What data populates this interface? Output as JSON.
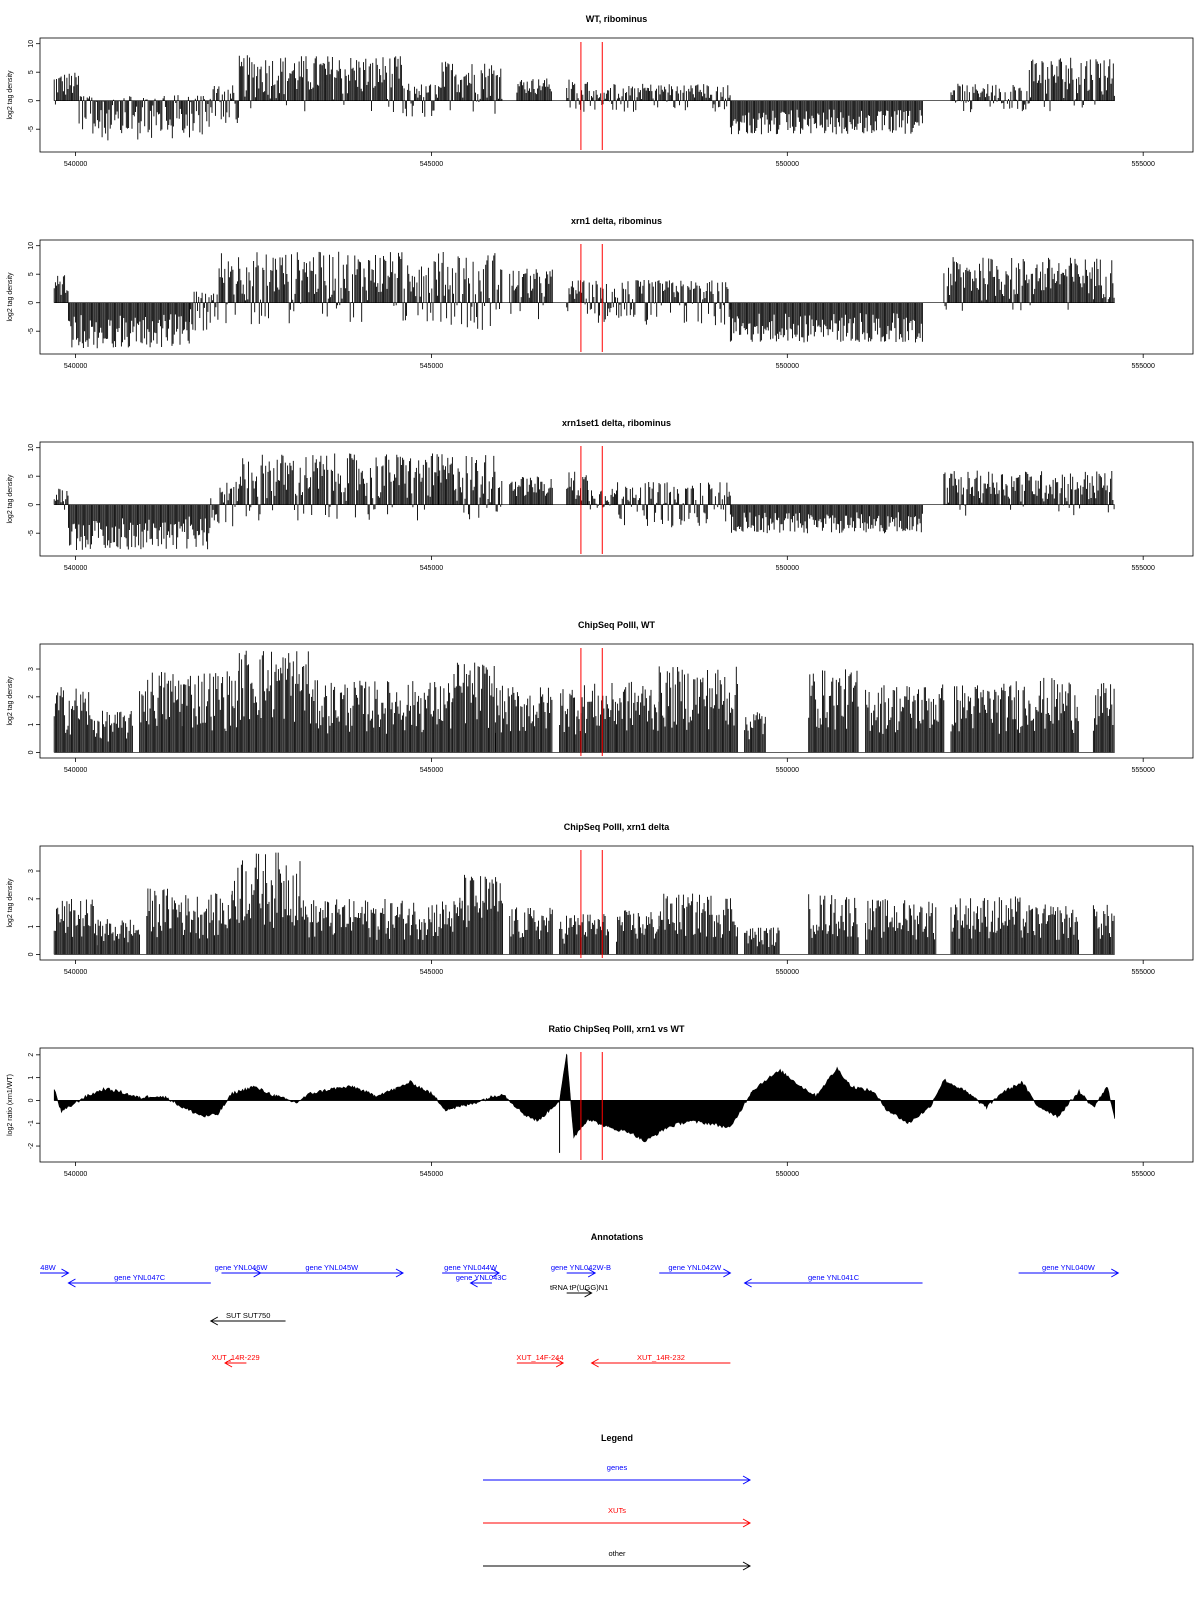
{
  "chart_data": [
    {
      "type": "bar",
      "title": "WT, ribominus",
      "ylabel": "log2 tag density",
      "xlim": [
        539500,
        555700
      ],
      "ylim": [
        -9,
        11
      ],
      "yticks": [
        -5,
        0,
        5,
        10
      ],
      "xticks": [
        540000,
        545000,
        550000,
        555000
      ],
      "markers": [
        547100,
        547400
      ],
      "marker_color": "#ff0000",
      "bar_color": "#000000",
      "segments": [
        {
          "x": [
            539700,
            540050
          ],
          "min": -1,
          "max": 5
        },
        {
          "x": [
            540050,
            541900
          ],
          "min": -7,
          "max": 1
        },
        {
          "x": [
            541900,
            542300
          ],
          "min": -4,
          "max": 3
        },
        {
          "x": [
            542300,
            544600
          ],
          "min": -2,
          "max": 8
        },
        {
          "x": [
            544600,
            545150
          ],
          "min": -3,
          "max": 3
        },
        {
          "x": [
            545150,
            546000
          ],
          "min": -3,
          "max": 7
        },
        {
          "x": [
            546200,
            546700
          ],
          "min": 0,
          "max": 4
        },
        {
          "x": [
            546900,
            547200
          ],
          "min": -2,
          "max": 4
        },
        {
          "x": [
            547200,
            547500
          ],
          "min": -2,
          "max": 2
        },
        {
          "x": [
            547500,
            549200
          ],
          "min": -2,
          "max": 3
        },
        {
          "x": [
            549200,
            551900
          ],
          "min": -6,
          "max": 0
        },
        {
          "x": [
            552300,
            553400
          ],
          "min": -2,
          "max": 3
        },
        {
          "x": [
            553400,
            554600
          ],
          "min": -2,
          "max": 8
        }
      ]
    },
    {
      "type": "bar",
      "title": "xrn1 delta, ribominus",
      "ylabel": "log2 tag density",
      "xlim": [
        539500,
        555700
      ],
      "ylim": [
        -9,
        11
      ],
      "yticks": [
        -5,
        0,
        5,
        10
      ],
      "xticks": [
        540000,
        545000,
        550000,
        555000
      ],
      "markers": [
        547100,
        547400
      ],
      "marker_color": "#ff0000",
      "bar_color": "#000000",
      "segments": [
        {
          "x": [
            539700,
            539900
          ],
          "min": 0,
          "max": 5
        },
        {
          "x": [
            539900,
            541600
          ],
          "min": -8,
          "max": 0
        },
        {
          "x": [
            541600,
            542000
          ],
          "min": -5,
          "max": 2
        },
        {
          "x": [
            542000,
            545100
          ],
          "min": -4,
          "max": 9
        },
        {
          "x": [
            545100,
            546000
          ],
          "min": -5,
          "max": 9
        },
        {
          "x": [
            546100,
            546700
          ],
          "min": -3,
          "max": 6
        },
        {
          "x": [
            546900,
            547200
          ],
          "min": -2,
          "max": 4
        },
        {
          "x": [
            547200,
            547600
          ],
          "min": -4,
          "max": 4
        },
        {
          "x": [
            547600,
            549200
          ],
          "min": -4,
          "max": 4
        },
        {
          "x": [
            549200,
            551900
          ],
          "min": -7,
          "max": 0
        },
        {
          "x": [
            552200,
            554600
          ],
          "min": -2,
          "max": 8
        }
      ]
    },
    {
      "type": "bar",
      "title": "xrn1set1 delta, ribominus",
      "ylabel": "log2 tag density",
      "xlim": [
        539500,
        555700
      ],
      "ylim": [
        -9,
        11
      ],
      "yticks": [
        -5,
        0,
        5,
        10
      ],
      "xticks": [
        540000,
        545000,
        550000,
        555000
      ],
      "markers": [
        547100,
        547400
      ],
      "marker_color": "#ff0000",
      "bar_color": "#000000",
      "segments": [
        {
          "x": [
            539700,
            539900
          ],
          "min": -1,
          "max": 3
        },
        {
          "x": [
            539900,
            541900
          ],
          "min": -8,
          "max": 0
        },
        {
          "x": [
            541900,
            542300
          ],
          "min": -4,
          "max": 4
        },
        {
          "x": [
            542300,
            545100
          ],
          "min": -3,
          "max": 9
        },
        {
          "x": [
            545100,
            546000
          ],
          "min": -3,
          "max": 9
        },
        {
          "x": [
            546100,
            546700
          ],
          "min": 0,
          "max": 5
        },
        {
          "x": [
            546900,
            547200
          ],
          "min": -2,
          "max": 6
        },
        {
          "x": [
            547200,
            547600
          ],
          "min": -2,
          "max": 3
        },
        {
          "x": [
            547600,
            549200
          ],
          "min": -4,
          "max": 4
        },
        {
          "x": [
            549200,
            551900
          ],
          "min": -5,
          "max": 0
        },
        {
          "x": [
            552200,
            554600
          ],
          "min": -2,
          "max": 6
        }
      ]
    },
    {
      "type": "bar",
      "title": "ChipSeq PolII, WT",
      "ylabel": "log2 tag density",
      "xlim": [
        539500,
        555700
      ],
      "ylim": [
        -0.2,
        3.9
      ],
      "yticks": [
        0,
        1,
        2,
        3
      ],
      "xticks": [
        540000,
        545000,
        550000,
        555000
      ],
      "markers": [
        547100,
        547400
      ],
      "marker_color": "#ff0000",
      "bar_color": "#000000",
      "segments": [
        {
          "x": [
            539700,
            540200
          ],
          "min": 0,
          "max": 2.4
        },
        {
          "x": [
            540200,
            540800
          ],
          "min": 0,
          "max": 1.5
        },
        {
          "x": [
            540900,
            541500
          ],
          "min": 0,
          "max": 3
        },
        {
          "x": [
            541500,
            542300
          ],
          "min": 0,
          "max": 3
        },
        {
          "x": [
            542300,
            543300
          ],
          "min": 0,
          "max": 3.8
        },
        {
          "x": [
            543300,
            545300
          ],
          "min": 0,
          "max": 2.6
        },
        {
          "x": [
            545300,
            545900
          ],
          "min": 0,
          "max": 3.3
        },
        {
          "x": [
            545900,
            546700
          ],
          "min": 0,
          "max": 2.4
        },
        {
          "x": [
            546800,
            547100
          ],
          "min": 0,
          "max": 2.5
        },
        {
          "x": [
            547100,
            547600
          ],
          "min": 0,
          "max": 2.5
        },
        {
          "x": [
            547600,
            548200
          ],
          "min": 0,
          "max": 2.6
        },
        {
          "x": [
            548200,
            549300
          ],
          "min": 0,
          "max": 3.1
        },
        {
          "x": [
            549400,
            549700
          ],
          "min": 0,
          "max": 1.6
        },
        {
          "x": [
            550300,
            551000
          ],
          "min": 0,
          "max": 3
        },
        {
          "x": [
            551100,
            552200
          ],
          "min": 0,
          "max": 2.5
        },
        {
          "x": [
            552300,
            553200
          ],
          "min": 0,
          "max": 2.5
        },
        {
          "x": [
            553200,
            554100
          ],
          "min": 0,
          "max": 2.7
        },
        {
          "x": [
            554300,
            554600
          ],
          "min": 0,
          "max": 2.5
        }
      ]
    },
    {
      "type": "bar",
      "title": "ChipSeq PolII, xrn1 delta",
      "ylabel": "log2 tag density",
      "xlim": [
        539500,
        555700
      ],
      "ylim": [
        -0.2,
        3.9
      ],
      "yticks": [
        0,
        1,
        2,
        3
      ],
      "xticks": [
        540000,
        545000,
        550000,
        555000
      ],
      "markers": [
        547100,
        547400
      ],
      "marker_color": "#ff0000",
      "bar_color": "#000000",
      "segments": [
        {
          "x": [
            539700,
            540300
          ],
          "min": 0,
          "max": 2
        },
        {
          "x": [
            540300,
            540900
          ],
          "min": 0,
          "max": 1.3
        },
        {
          "x": [
            541000,
            541500
          ],
          "min": 0,
          "max": 2.4
        },
        {
          "x": [
            541500,
            542200
          ],
          "min": 0,
          "max": 2.2
        },
        {
          "x": [
            542200,
            543200
          ],
          "min": 0,
          "max": 3.7
        },
        {
          "x": [
            543200,
            545400
          ],
          "min": 0,
          "max": 2
        },
        {
          "x": [
            545400,
            546000
          ],
          "min": 0,
          "max": 2.9
        },
        {
          "x": [
            546100,
            546700
          ],
          "min": 0,
          "max": 1.7
        },
        {
          "x": [
            546800,
            547100
          ],
          "min": 0,
          "max": 1.5
        },
        {
          "x": [
            547100,
            547500
          ],
          "min": 0,
          "max": 1.5
        },
        {
          "x": [
            547600,
            548200
          ],
          "min": 0,
          "max": 1.6
        },
        {
          "x": [
            548200,
            549300
          ],
          "min": 0,
          "max": 2.2
        },
        {
          "x": [
            549400,
            549900
          ],
          "min": 0,
          "max": 1
        },
        {
          "x": [
            550300,
            551000
          ],
          "min": 0,
          "max": 2.2
        },
        {
          "x": [
            551100,
            552100
          ],
          "min": 0,
          "max": 2
        },
        {
          "x": [
            552300,
            553300
          ],
          "min": 0,
          "max": 2.1
        },
        {
          "x": [
            553300,
            554100
          ],
          "min": 0,
          "max": 1.8
        },
        {
          "x": [
            554300,
            554600
          ],
          "min": 0,
          "max": 1.8
        }
      ]
    },
    {
      "type": "area",
      "title": "Ratio ChipSeq PolII, xrn1 vs WT",
      "ylabel": "log2 ratio (xrn1/WT)",
      "xlim": [
        539500,
        555700
      ],
      "ylim": [
        -2.7,
        2.3
      ],
      "yticks": [
        -2,
        -1,
        0,
        1,
        2
      ],
      "xticks": [
        540000,
        545000,
        550000,
        555000
      ],
      "markers": [
        547100,
        547400
      ],
      "marker_color": "#ff0000",
      "x": [
        539700,
        539800,
        539900,
        540100,
        540400,
        540600,
        540900,
        541100,
        541300,
        541500,
        541800,
        542000,
        542200,
        542500,
        542800,
        543100,
        543300,
        543600,
        543900,
        544200,
        544500,
        544700,
        545000,
        545200,
        545500,
        545800,
        546000,
        546300,
        546500,
        546700,
        546800,
        546900,
        547000,
        547200,
        547500,
        547800,
        548000,
        548300,
        548600,
        548900,
        549200,
        549500,
        549700,
        549900,
        550200,
        550400,
        550700,
        550900,
        551200,
        551400,
        551700,
        552000,
        552200,
        552500,
        552800,
        553000,
        553300,
        553500,
        553800,
        554100,
        554300,
        554500,
        554600
      ],
      "values": [
        0.5,
        -0.5,
        -0.3,
        0.1,
        0.5,
        0.4,
        0.1,
        0.2,
        0.1,
        -0.3,
        -0.7,
        -0.6,
        0.3,
        0.6,
        0.2,
        -0.1,
        0.3,
        0.5,
        0.6,
        0.2,
        0.5,
        0.8,
        0.3,
        -0.4,
        -0.2,
        0.1,
        0.3,
        -0.6,
        -0.9,
        -0.3,
        0.0,
        2.0,
        -1.6,
        -0.8,
        -1.2,
        -1.4,
        -1.8,
        -1.2,
        -0.9,
        -1.0,
        -1.2,
        0.4,
        0.9,
        1.3,
        0.6,
        0.2,
        1.4,
        0.6,
        0.4,
        -0.4,
        -1.0,
        -0.3,
        0.9,
        0.4,
        -0.3,
        0.3,
        0.8,
        -0.2,
        -0.7,
        0.4,
        -0.3,
        0.6,
        -0.8
      ]
    }
  ],
  "annotations": {
    "title": "Annotations",
    "xlim": [
      539500,
      555700
    ],
    "items": [
      {
        "label": "48W",
        "x1": 539500,
        "x2": 539900,
        "strand": "+",
        "row": 0,
        "color": "#0000ff"
      },
      {
        "label": "gene YNL047C",
        "x1": 539900,
        "x2": 541900,
        "strand": "-",
        "row": 1,
        "color": "#0000ff"
      },
      {
        "label": "gene YNL046W",
        "x1": 542050,
        "x2": 542600,
        "strand": "+",
        "row": 0,
        "color": "#0000ff"
      },
      {
        "label": "gene YNL045W",
        "x1": 542600,
        "x2": 544600,
        "strand": "+",
        "row": 0,
        "color": "#0000ff"
      },
      {
        "label": "gene YNL044W",
        "x1": 545150,
        "x2": 545950,
        "strand": "+",
        "row": 0,
        "color": "#0000ff"
      },
      {
        "label": "gene YNL043C",
        "x1": 545550,
        "x2": 545850,
        "strand": "-",
        "row": 1,
        "color": "#0000ff"
      },
      {
        "label": "gene YNL042W-B",
        "x1": 546900,
        "x2": 547300,
        "strand": "+",
        "row": 0,
        "color": "#0000ff"
      },
      {
        "label": "gene YNL042W",
        "x1": 548200,
        "x2": 549200,
        "strand": "+",
        "row": 0,
        "color": "#0000ff"
      },
      {
        "label": "gene YNL041C",
        "x1": 549400,
        "x2": 551900,
        "strand": "-",
        "row": 1,
        "color": "#0000ff"
      },
      {
        "label": "gene YNL040W",
        "x1": 553250,
        "x2": 554650,
        "strand": "+",
        "row": 0,
        "color": "#0000ff"
      },
      {
        "label": "tRNA tP(UGG)N1",
        "x1": 546900,
        "x2": 547250,
        "strand": "+",
        "row": 2,
        "color": "#000000"
      },
      {
        "label": "SUT SUT750",
        "x1": 541900,
        "x2": 542950,
        "strand": "-",
        "row": 3,
        "color": "#000000"
      },
      {
        "label": "XUT_14R-229",
        "x1": 542100,
        "x2": 542400,
        "strand": "-",
        "row": 4,
        "color": "#ff0000"
      },
      {
        "label": "XUT_14F-244",
        "x1": 546200,
        "x2": 546850,
        "strand": "+",
        "row": 4,
        "color": "#ff0000"
      },
      {
        "label": "XUT_14R-232",
        "x1": 547250,
        "x2": 549200,
        "strand": "-",
        "row": 4,
        "color": "#ff0000"
      }
    ]
  },
  "legend": {
    "title": "Legend",
    "items": [
      {
        "label": "genes",
        "color": "#0000ff"
      },
      {
        "label": "XUTs",
        "color": "#ff0000"
      },
      {
        "label": "other",
        "color": "#000000"
      }
    ]
  }
}
